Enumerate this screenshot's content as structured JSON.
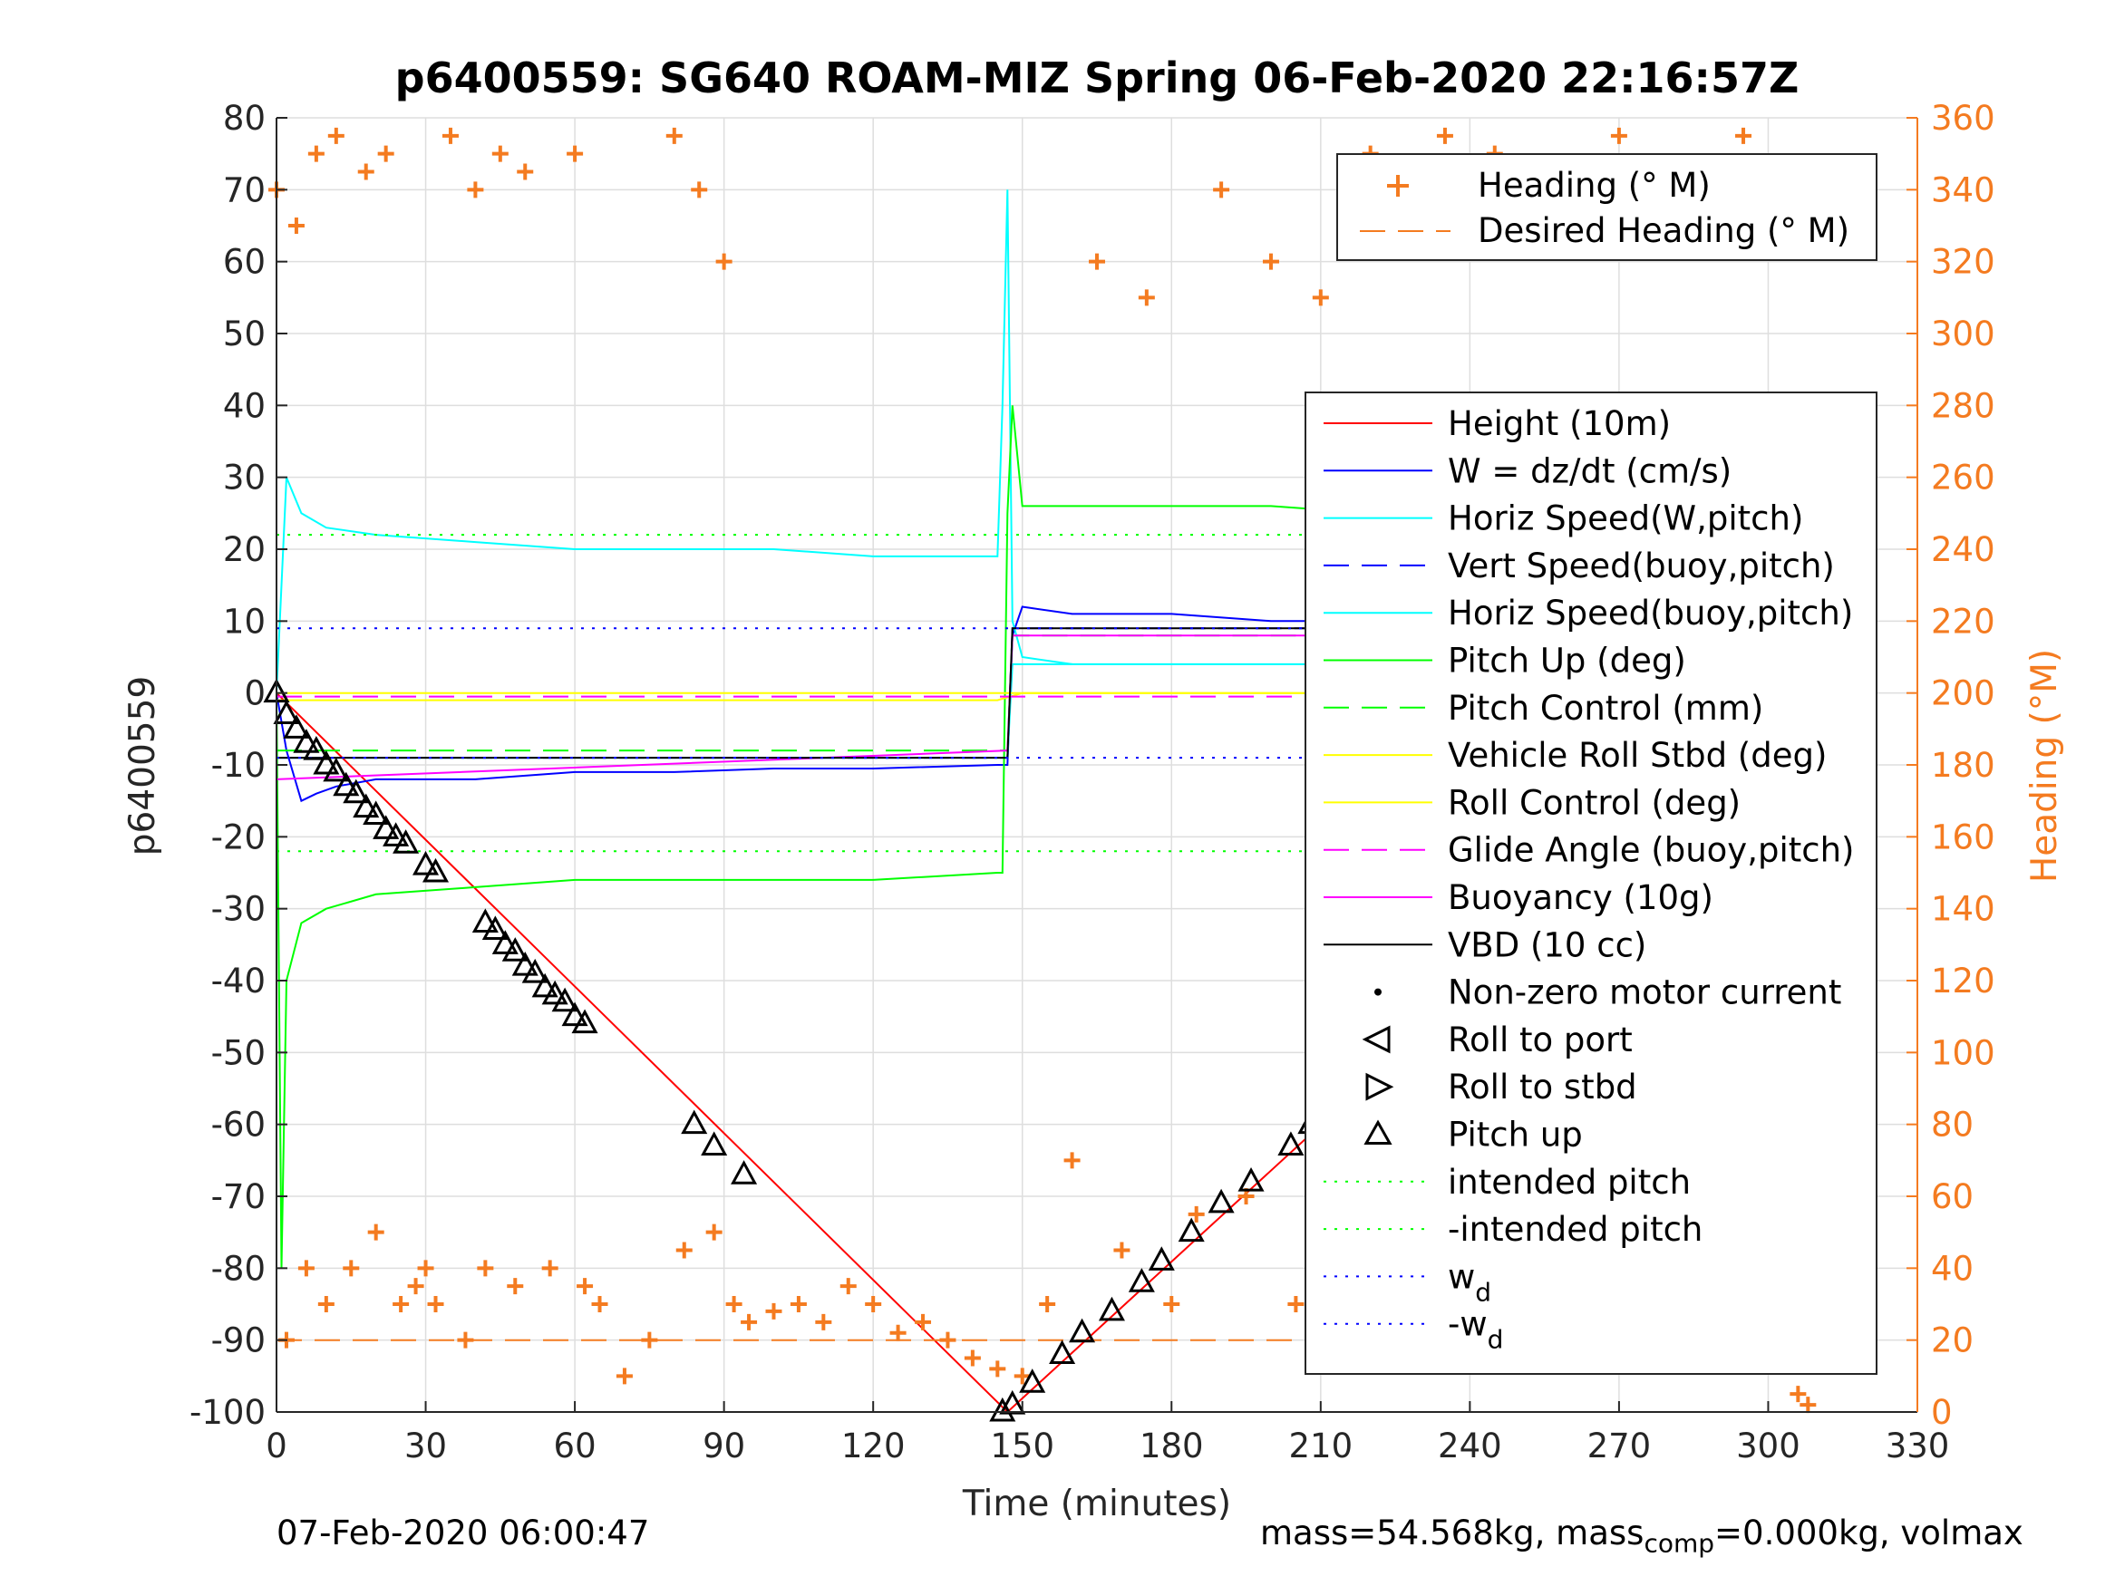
{
  "chart_data": {
    "type": "line",
    "title": "p6400559: SG640 ROAM-MIZ Spring 06-Feb-2020 22:16:57Z",
    "xlabel": "Time (minutes)",
    "ylabel": "p6400559",
    "y2label": "Heading (°M)",
    "xlim": [
      0,
      330
    ],
    "ylim": [
      -100,
      80
    ],
    "y2lim": [
      0,
      360
    ],
    "xticks": [
      0,
      30,
      60,
      90,
      120,
      150,
      180,
      210,
      240,
      270,
      300,
      330
    ],
    "yticks": [
      -100,
      -90,
      -80,
      -70,
      -60,
      -50,
      -40,
      -30,
      -20,
      -10,
      0,
      10,
      20,
      30,
      40,
      50,
      60,
      70,
      80
    ],
    "y2ticks": [
      0,
      20,
      40,
      60,
      80,
      100,
      120,
      140,
      160,
      180,
      200,
      220,
      240,
      260,
      280,
      300,
      320,
      340,
      360
    ],
    "grid": true,
    "colors": {
      "height": "#ff0000",
      "w": "#0000ff",
      "horiz_speed_w": "#00ffff",
      "vert_speed_buoy": "#0000ff",
      "horiz_speed_buoy": "#00ffff",
      "pitch_up": "#00ff00",
      "pitch_control": "#00ff00",
      "roll": "#ffff00",
      "roll_control": "#ffff00",
      "glide_angle": "#ff00ff",
      "buoyancy": "#ff00ff",
      "vbd": "#000000",
      "heading": "#f47b20",
      "desired_heading": "#f47b20"
    },
    "legends": [
      {
        "placement": "top-right",
        "entries": [
          "Heading (° M)",
          "Desired Heading (° M)"
        ]
      },
      {
        "placement": "right",
        "entries": [
          "Height (10m)",
          "W = dz/dt (cm/s)",
          "Horiz Speed(W,pitch)",
          "Vert Speed(buoy,pitch)",
          "Horiz Speed(buoy,pitch)",
          "Pitch Up (deg)",
          "Pitch Control (mm)",
          "Vehicle Roll Stbd (deg)",
          "Roll Control (deg)",
          "Glide Angle (buoy,pitch)",
          "Buoyancy (10g)",
          "VBD (10 cc)",
          "Non-zero motor current",
          "Roll to port",
          "Roll to stbd",
          "Pitch up",
          "intended pitch",
          "-intended pitch",
          "w_d",
          "-w_d"
        ]
      }
    ],
    "series": [
      {
        "name": "Height (10m)",
        "x": [
          0,
          147,
          308
        ],
        "y": [
          0,
          -100,
          2
        ]
      },
      {
        "name": "W = dz/dt (cm/s)",
        "x": [
          0,
          2,
          5,
          8,
          12,
          20,
          40,
          60,
          80,
          100,
          120,
          145,
          147,
          148,
          150,
          160,
          180,
          200,
          220,
          240,
          260,
          280,
          300,
          308
        ],
        "y": [
          0,
          -8,
          -15,
          -14,
          -13,
          -12,
          -12,
          -11,
          -11,
          -10.5,
          -10.5,
          -10,
          -10,
          8,
          12,
          11,
          11,
          10,
          10,
          10,
          10,
          9,
          9,
          10
        ]
      },
      {
        "name": "Horiz Speed(W,pitch)",
        "x": [
          0,
          2,
          5,
          10,
          20,
          40,
          60,
          80,
          100,
          120,
          145,
          146,
          147,
          148,
          150,
          160
        ],
        "y": [
          0,
          30,
          25,
          23,
          22,
          21,
          20,
          20,
          20,
          19,
          19,
          40,
          70,
          10,
          5,
          4
        ]
      },
      {
        "name": "Vert Speed(buoy,pitch)",
        "x": [
          0,
          147,
          148,
          308
        ],
        "y": [
          -9,
          -9,
          9,
          9
        ]
      },
      {
        "name": "Horiz Speed(buoy,pitch)",
        "x": [
          0,
          147,
          148,
          308
        ],
        "y": [
          -9,
          -9,
          4,
          4
        ]
      },
      {
        "name": "Pitch Up (deg)",
        "x": [
          0,
          1,
          2,
          5,
          10,
          20,
          40,
          60,
          80,
          100,
          120,
          145,
          146,
          147,
          148,
          150,
          160,
          180,
          200,
          220,
          240,
          260,
          280,
          300,
          308
        ],
        "y": [
          0,
          -80,
          -40,
          -32,
          -30,
          -28,
          -27,
          -26,
          -26,
          -26,
          -26,
          -25,
          -25,
          25,
          40,
          26,
          26,
          26,
          26,
          25,
          25,
          25,
          25,
          24,
          24
        ]
      },
      {
        "name": "Pitch Control (mm)",
        "x": [
          0,
          147,
          148,
          308
        ],
        "y": [
          -8,
          -8,
          8,
          8
        ]
      },
      {
        "name": "Vehicle Roll Stbd (deg)",
        "x": [
          0,
          145,
          150,
          308
        ],
        "y": [
          -1,
          -1,
          0,
          0
        ]
      },
      {
        "name": "Roll Control (deg)",
        "x": [
          0,
          308
        ],
        "y": [
          0,
          0
        ]
      },
      {
        "name": "Glide Angle (buoy,pitch)",
        "x": [
          0,
          147,
          148,
          308
        ],
        "y": [
          -0.5,
          -0.5,
          -0.5,
          -0.5
        ]
      },
      {
        "name": "Buoyancy (10g)",
        "x": [
          0,
          147,
          148,
          308
        ],
        "y": [
          -12,
          -8,
          8,
          8
        ]
      },
      {
        "name": "VBD (10 cc)",
        "x": [
          0,
          147,
          148,
          308
        ],
        "y": [
          -9,
          -9,
          9,
          9
        ]
      },
      {
        "name": "intended pitch",
        "x": [
          0,
          308
        ],
        "y": [
          22,
          22
        ]
      },
      {
        "name": "-intended pitch",
        "x": [
          0,
          308
        ],
        "y": [
          -22,
          -22
        ]
      },
      {
        "name": "w_d",
        "x": [
          0,
          308
        ],
        "y": [
          9,
          9
        ]
      },
      {
        "name": "-w_d",
        "x": [
          0,
          308
        ],
        "y": [
          -9,
          -9
        ]
      },
      {
        "name": "Desired Heading (° M)",
        "axis": "y2",
        "x": [
          0,
          308
        ],
        "y": [
          20,
          20
        ]
      },
      {
        "name": "Heading (° M)",
        "axis": "y2",
        "marker": "+",
        "x": [
          0,
          2,
          4,
          6,
          8,
          10,
          12,
          15,
          18,
          20,
          22,
          25,
          28,
          30,
          32,
          35,
          38,
          40,
          42,
          45,
          48,
          50,
          55,
          60,
          62,
          65,
          70,
          75,
          80,
          82,
          85,
          88,
          90,
          92,
          95,
          100,
          105,
          110,
          115,
          120,
          125,
          130,
          135,
          140,
          145,
          150,
          155,
          160,
          165,
          170,
          175,
          180,
          185,
          190,
          195,
          200,
          205,
          210,
          215,
          220,
          225,
          230,
          235,
          240,
          245,
          250,
          255,
          260,
          265,
          270,
          275,
          280,
          285,
          290,
          295,
          300,
          303,
          306,
          308
        ],
        "y": [
          340,
          20,
          330,
          40,
          350,
          30,
          355,
          40,
          345,
          50,
          350,
          30,
          35,
          40,
          30,
          355,
          20,
          340,
          40,
          350,
          35,
          345,
          40,
          350,
          35,
          30,
          10,
          20,
          355,
          45,
          340,
          50,
          320,
          30,
          25,
          28,
          30,
          25,
          35,
          30,
          22,
          25,
          20,
          15,
          12,
          10,
          30,
          70,
          320,
          45,
          310,
          30,
          55,
          340,
          60,
          320,
          30,
          310,
          55,
          350,
          40,
          70,
          355,
          40,
          350,
          55,
          30,
          345,
          30,
          355,
          35,
          345,
          50,
          30,
          355,
          25,
          15,
          5,
          2
        ]
      },
      {
        "name": "Pitch up",
        "marker": "triangle",
        "x": [
          0,
          2,
          4,
          6,
          8,
          10,
          12,
          14,
          16,
          18,
          20,
          22,
          24,
          26,
          30,
          32,
          42,
          44,
          46,
          48,
          50,
          52,
          54,
          56,
          58,
          60,
          62,
          84,
          88,
          94,
          146,
          148,
          152,
          158,
          162,
          168,
          174,
          178,
          184,
          190,
          196,
          204,
          208,
          212,
          216,
          220,
          224,
          228,
          232,
          236,
          240,
          244,
          248,
          252,
          256,
          260,
          264,
          268,
          272,
          276,
          280,
          284,
          288,
          292,
          296,
          300,
          304
        ],
        "y": [
          0,
          -3,
          -5,
          -7,
          -8,
          -10,
          -11,
          -13,
          -14,
          -16,
          -17,
          -19,
          -20,
          -21,
          -24,
          -25,
          -32,
          -33,
          -35,
          -36,
          -38,
          -39,
          -41,
          -42,
          -43,
          -45,
          -46,
          -60,
          -63,
          -67,
          -100,
          -99,
          -96,
          -92,
          -89,
          -86,
          -82,
          -79,
          -75,
          -71,
          -68,
          -63,
          -60,
          -57,
          -54,
          -51,
          -49,
          -46,
          -43,
          -40,
          -38,
          -35,
          -32,
          -29,
          -27,
          -24,
          -22,
          -19,
          -16,
          -13,
          -11,
          -8,
          -6,
          -4,
          -2,
          0,
          2
        ]
      }
    ],
    "annotations": {
      "date_footer": "07-Feb-2020 06:00:47",
      "mass_label": "mass=54.568kg, mass",
      "mass_sub": "comp",
      "mass_rest": "=0.000kg, volmax"
    }
  }
}
